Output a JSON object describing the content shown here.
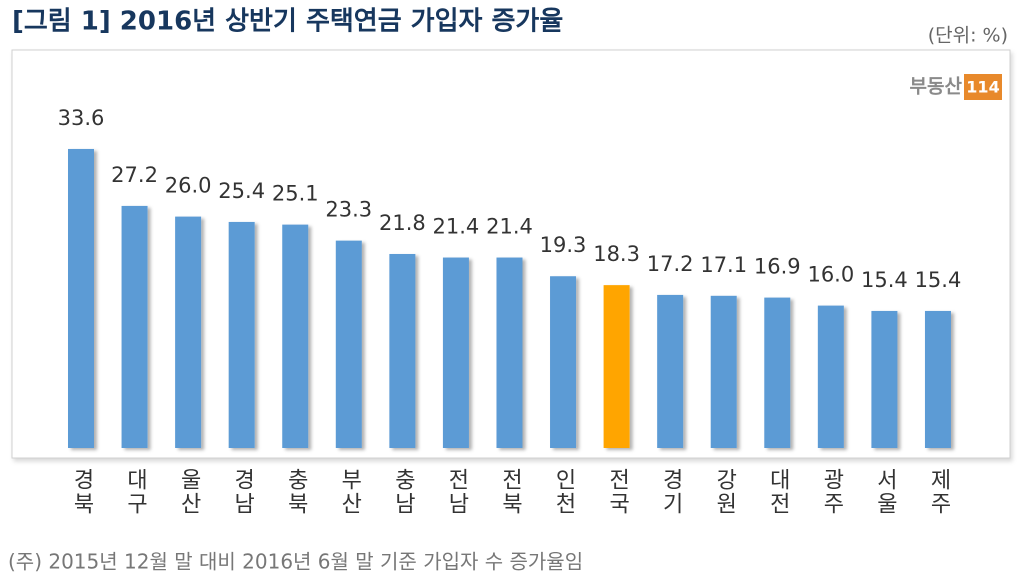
{
  "chart_data": {
    "type": "bar",
    "title": "[그림 1] 2016년 상반기 주택연금 가입자 증가율",
    "unit_note": "(단위: %)",
    "logo": {
      "text": "부동산",
      "badge": "114"
    },
    "footnote": "(주) 2015년 12월 말 대비 2016년 6월 말 기준 가입자 수 증가율임",
    "categories": [
      "경북",
      "대구",
      "울산",
      "경남",
      "충북",
      "부산",
      "충남",
      "전남",
      "전북",
      "인천",
      "전국",
      "경기",
      "강원",
      "대전",
      "광주",
      "서울",
      "제주"
    ],
    "values": [
      33.6,
      27.2,
      26.0,
      25.4,
      25.1,
      23.3,
      21.8,
      21.4,
      21.4,
      19.3,
      18.3,
      17.2,
      17.1,
      16.9,
      16.0,
      15.4,
      15.4
    ],
    "value_labels": [
      "33.6",
      "27.2",
      "26.0",
      "25.4",
      "25.1",
      "23.3",
      "21.8",
      "21.4",
      "21.4",
      "19.3",
      "18.3",
      "17.2",
      "17.1",
      "16.9",
      "16.0",
      "15.4",
      "15.4"
    ],
    "colors": [
      "#5b9bd5",
      "#5b9bd5",
      "#5b9bd5",
      "#5b9bd5",
      "#5b9bd5",
      "#5b9bd5",
      "#5b9bd5",
      "#5b9bd5",
      "#5b9bd5",
      "#5b9bd5",
      "#ffa500",
      "#5b9bd5",
      "#5b9bd5",
      "#5b9bd5",
      "#5b9bd5",
      "#5b9bd5",
      "#5b9bd5"
    ]
  }
}
